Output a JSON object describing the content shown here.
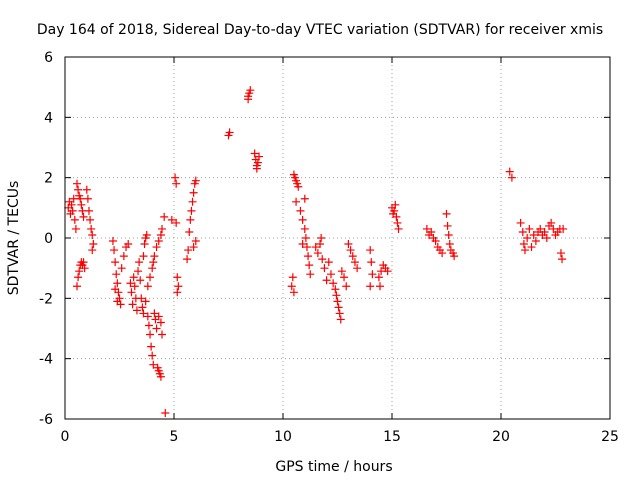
{
  "chart_data": {
    "type": "scatter",
    "title": "Day 164 of 2018, Sidereal Day-to-day VTEC variation (SDTVAR) for receiver xmis",
    "xlabel": "GPS time / hours",
    "ylabel": "SDTVAR / TECUs",
    "xlim": [
      0,
      25
    ],
    "ylim": [
      -6,
      6
    ],
    "x_ticks": [
      0,
      5,
      10,
      15,
      20,
      25
    ],
    "y_ticks": [
      -6,
      -4,
      -2,
      0,
      2,
      4,
      6
    ],
    "grid": true,
    "marker": "+",
    "color": "#ff0000",
    "series": [
      {
        "name": "SDTVAR",
        "points": [
          [
            0.15,
            1.0
          ],
          [
            0.2,
            1.2
          ],
          [
            0.25,
            0.8
          ],
          [
            0.3,
            1.1
          ],
          [
            0.35,
            0.9
          ],
          [
            0.4,
            1.3
          ],
          [
            0.45,
            0.6
          ],
          [
            0.5,
            0.3
          ],
          [
            0.55,
            1.8
          ],
          [
            0.6,
            1.6
          ],
          [
            0.65,
            1.4
          ],
          [
            0.7,
            1.3
          ],
          [
            0.75,
            1.1
          ],
          [
            0.8,
            0.9
          ],
          [
            0.85,
            0.7
          ],
          [
            0.55,
            -1.6
          ],
          [
            0.6,
            -1.3
          ],
          [
            0.65,
            -1.1
          ],
          [
            0.7,
            -0.9
          ],
          [
            0.75,
            -0.8
          ],
          [
            0.8,
            -0.9
          ],
          [
            0.85,
            -0.8
          ],
          [
            0.9,
            -1.0
          ],
          [
            1.0,
            1.6
          ],
          [
            1.05,
            1.3
          ],
          [
            1.1,
            0.9
          ],
          [
            1.15,
            0.6
          ],
          [
            1.2,
            0.3
          ],
          [
            1.25,
            0.1
          ],
          [
            1.3,
            -0.2
          ],
          [
            1.25,
            -0.4
          ],
          [
            2.2,
            -0.1
          ],
          [
            2.25,
            -0.4
          ],
          [
            2.3,
            -0.8
          ],
          [
            2.35,
            -1.2
          ],
          [
            2.4,
            -1.5
          ],
          [
            2.45,
            -1.8
          ],
          [
            2.5,
            -2.0
          ],
          [
            2.55,
            -2.2
          ],
          [
            2.3,
            -1.7
          ],
          [
            2.4,
            -2.1
          ],
          [
            2.6,
            -1.0
          ],
          [
            2.7,
            -0.6
          ],
          [
            2.8,
            -0.3
          ],
          [
            2.9,
            -0.2
          ],
          [
            3.0,
            -1.5
          ],
          [
            3.05,
            -1.8
          ],
          [
            3.1,
            -2.2
          ],
          [
            3.15,
            -1.3
          ],
          [
            3.2,
            -1.6
          ],
          [
            3.25,
            -2.0
          ],
          [
            3.3,
            -2.4
          ],
          [
            3.35,
            -1.1
          ],
          [
            3.4,
            -0.8
          ],
          [
            3.45,
            -1.4
          ],
          [
            3.5,
            -2.0
          ],
          [
            3.55,
            -2.3
          ],
          [
            3.6,
            -0.6
          ],
          [
            3.65,
            -0.2
          ],
          [
            3.7,
            0.0
          ],
          [
            3.75,
            0.1
          ],
          [
            3.6,
            -2.5
          ],
          [
            3.7,
            -2.1
          ],
          [
            3.8,
            -2.6
          ],
          [
            3.85,
            -2.9
          ],
          [
            3.9,
            -3.2
          ],
          [
            3.95,
            -3.6
          ],
          [
            4.0,
            -3.9
          ],
          [
            4.05,
            -4.2
          ],
          [
            4.1,
            -2.5
          ],
          [
            4.15,
            -2.7
          ],
          [
            4.2,
            -3.0
          ],
          [
            4.25,
            -4.3
          ],
          [
            4.3,
            -4.4
          ],
          [
            4.35,
            -4.5
          ],
          [
            4.4,
            -4.6
          ],
          [
            4.3,
            -2.6
          ],
          [
            4.4,
            -2.8
          ],
          [
            4.45,
            -3.2
          ],
          [
            3.8,
            -1.6
          ],
          [
            3.9,
            -1.3
          ],
          [
            4.0,
            -1.0
          ],
          [
            4.05,
            -0.8
          ],
          [
            4.1,
            -0.6
          ],
          [
            4.2,
            -0.3
          ],
          [
            4.3,
            -0.1
          ],
          [
            4.4,
            0.1
          ],
          [
            4.45,
            0.3
          ],
          [
            4.6,
            -5.8
          ],
          [
            4.55,
            0.7
          ],
          [
            4.9,
            0.6
          ],
          [
            5.1,
            0.5
          ],
          [
            5.05,
            2.0
          ],
          [
            5.1,
            1.8
          ],
          [
            5.15,
            -1.3
          ],
          [
            5.2,
            -1.6
          ],
          [
            5.15,
            -1.8
          ],
          [
            5.6,
            -0.7
          ],
          [
            5.65,
            -0.4
          ],
          [
            5.7,
            0.2
          ],
          [
            5.75,
            0.6
          ],
          [
            5.8,
            0.9
          ],
          [
            5.85,
            1.2
          ],
          [
            5.9,
            1.5
          ],
          [
            5.95,
            1.8
          ],
          [
            6.0,
            1.9
          ],
          [
            6.0,
            -0.1
          ],
          [
            5.9,
            -0.3
          ],
          [
            7.5,
            3.4
          ],
          [
            7.55,
            3.5
          ],
          [
            8.4,
            4.7
          ],
          [
            8.45,
            4.8
          ],
          [
            8.5,
            4.9
          ],
          [
            8.4,
            4.6
          ],
          [
            8.7,
            2.8
          ],
          [
            8.75,
            2.6
          ],
          [
            8.8,
            2.4
          ],
          [
            8.85,
            2.5
          ],
          [
            8.9,
            2.7
          ],
          [
            8.8,
            2.3
          ],
          [
            10.4,
            -1.6
          ],
          [
            10.45,
            -1.3
          ],
          [
            10.5,
            -1.8
          ],
          [
            10.5,
            2.1
          ],
          [
            10.55,
            2.0
          ],
          [
            10.6,
            1.9
          ],
          [
            10.65,
            1.8
          ],
          [
            10.7,
            1.7
          ],
          [
            10.6,
            1.2
          ],
          [
            10.8,
            0.9
          ],
          [
            10.9,
            0.6
          ],
          [
            11.0,
            0.3
          ],
          [
            11.05,
            0.0
          ],
          [
            11.1,
            -0.3
          ],
          [
            11.15,
            -0.6
          ],
          [
            11.2,
            -0.9
          ],
          [
            11.25,
            -1.2
          ],
          [
            11.0,
            1.3
          ],
          [
            10.9,
            -0.2
          ],
          [
            11.5,
            -0.3
          ],
          [
            11.6,
            -0.5
          ],
          [
            11.7,
            -0.2
          ],
          [
            11.75,
            0.0
          ],
          [
            11.8,
            -0.7
          ],
          [
            11.9,
            -1.0
          ],
          [
            12.0,
            -1.4
          ],
          [
            12.1,
            -0.8
          ],
          [
            12.2,
            -1.2
          ],
          [
            12.3,
            -1.5
          ],
          [
            12.4,
            -1.7
          ],
          [
            12.45,
            -1.9
          ],
          [
            12.5,
            -2.1
          ],
          [
            12.55,
            -2.3
          ],
          [
            12.6,
            -2.5
          ],
          [
            12.65,
            -2.7
          ],
          [
            12.7,
            -1.1
          ],
          [
            12.8,
            -1.3
          ],
          [
            12.9,
            -1.6
          ],
          [
            13.0,
            -0.2
          ],
          [
            13.1,
            -0.4
          ],
          [
            13.2,
            -0.6
          ],
          [
            13.3,
            -0.8
          ],
          [
            13.4,
            -1.0
          ],
          [
            14.0,
            -0.4
          ],
          [
            14.05,
            -0.8
          ],
          [
            14.1,
            -1.2
          ],
          [
            14.0,
            -1.6
          ],
          [
            14.4,
            -1.3
          ],
          [
            14.5,
            -1.1
          ],
          [
            14.6,
            -0.9
          ],
          [
            14.7,
            -1.0
          ],
          [
            14.8,
            -1.1
          ],
          [
            14.45,
            -1.6
          ],
          [
            15.0,
            1.0
          ],
          [
            15.05,
            0.8
          ],
          [
            15.1,
            0.9
          ],
          [
            15.15,
            1.1
          ],
          [
            15.2,
            0.7
          ],
          [
            15.25,
            0.5
          ],
          [
            15.3,
            0.3
          ],
          [
            16.6,
            0.3
          ],
          [
            16.7,
            0.1
          ],
          [
            16.8,
            0.2
          ],
          [
            16.9,
            0.0
          ],
          [
            17.0,
            -0.1
          ],
          [
            17.1,
            -0.3
          ],
          [
            17.2,
            -0.4
          ],
          [
            17.3,
            -0.5
          ],
          [
            17.5,
            0.8
          ],
          [
            17.55,
            0.4
          ],
          [
            17.6,
            0.1
          ],
          [
            17.65,
            -0.2
          ],
          [
            17.7,
            -0.4
          ],
          [
            17.8,
            -0.5
          ],
          [
            17.85,
            -0.6
          ],
          [
            20.4,
            2.2
          ],
          [
            20.5,
            2.0
          ],
          [
            20.9,
            0.5
          ],
          [
            21.0,
            0.2
          ],
          [
            21.05,
            -0.2
          ],
          [
            21.1,
            -0.4
          ],
          [
            21.2,
            0.0
          ],
          [
            21.3,
            0.3
          ],
          [
            21.4,
            -0.3
          ],
          [
            21.5,
            0.1
          ],
          [
            21.6,
            -0.1
          ],
          [
            21.7,
            0.2
          ],
          [
            21.8,
            0.3
          ],
          [
            21.9,
            0.1
          ],
          [
            22.0,
            0.2
          ],
          [
            22.1,
            0.0
          ],
          [
            22.2,
            0.4
          ],
          [
            22.3,
            0.5
          ],
          [
            22.4,
            0.3
          ],
          [
            22.5,
            0.1
          ],
          [
            22.6,
            0.2
          ],
          [
            22.7,
            0.3
          ],
          [
            22.75,
            -0.5
          ],
          [
            22.8,
            -0.7
          ],
          [
            22.85,
            0.3
          ]
        ]
      }
    ]
  }
}
